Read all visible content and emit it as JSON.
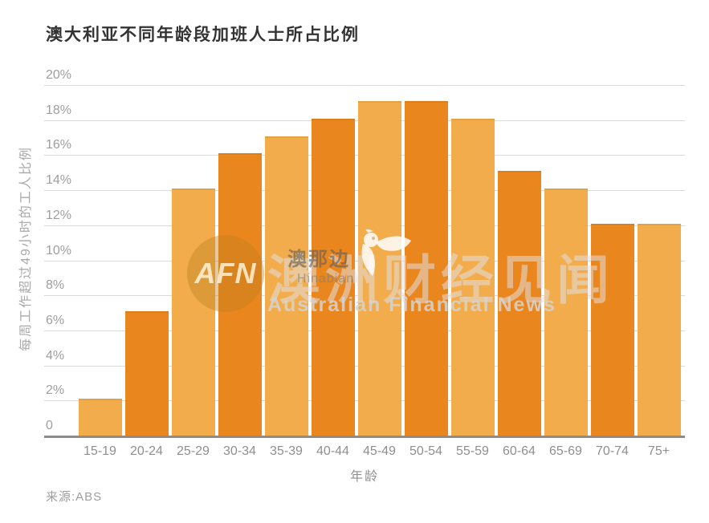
{
  "title": "澳大利亚不同年龄段加班人士所占比例",
  "source_note": "来源:ABS",
  "watermark": {
    "circle_text": "AFN",
    "cn_large": "澳洲财经见闻",
    "stamp_cn": "澳那边",
    "stamp_en": "Hinabian",
    "en_line": "Australian Financial News"
  },
  "colors": {
    "bar_light": "#F2AC4B",
    "bar_dark": "#EA861E",
    "grid": "#DADADA",
    "axis": "#8C8C8C",
    "tick_text": "#9E9E9E",
    "title_text": "#333333",
    "watermark_circle": "rgba(192,128,32,0.42)"
  },
  "chart_data": {
    "type": "bar",
    "title": "澳大利亚不同年龄段加班人士所占比例",
    "categories": [
      "15-19",
      "20-24",
      "25-29",
      "30-34",
      "35-39",
      "40-44",
      "45-49",
      "50-54",
      "55-59",
      "60-64",
      "65-69",
      "70-74",
      "75+"
    ],
    "values": [
      2,
      7,
      14,
      16,
      17,
      18,
      19,
      19,
      18,
      15,
      14,
      12,
      12
    ],
    "bar_color_pattern": "alternating light/dark orange starting light",
    "xlabel": "年龄",
    "ylabel": "每周工作超过49小时的工人比例",
    "ylim": [
      0,
      20
    ],
    "ytick_values": [
      20,
      18,
      16,
      14,
      12,
      10,
      8,
      6,
      4,
      2,
      0
    ],
    "ytick_labels": [
      "20%",
      "18%",
      "16%",
      "14%",
      "12%",
      "10%",
      "8%",
      "6%",
      "4%",
      "2%",
      "0"
    ],
    "grid": true,
    "legend": "none",
    "source": "ABS"
  }
}
